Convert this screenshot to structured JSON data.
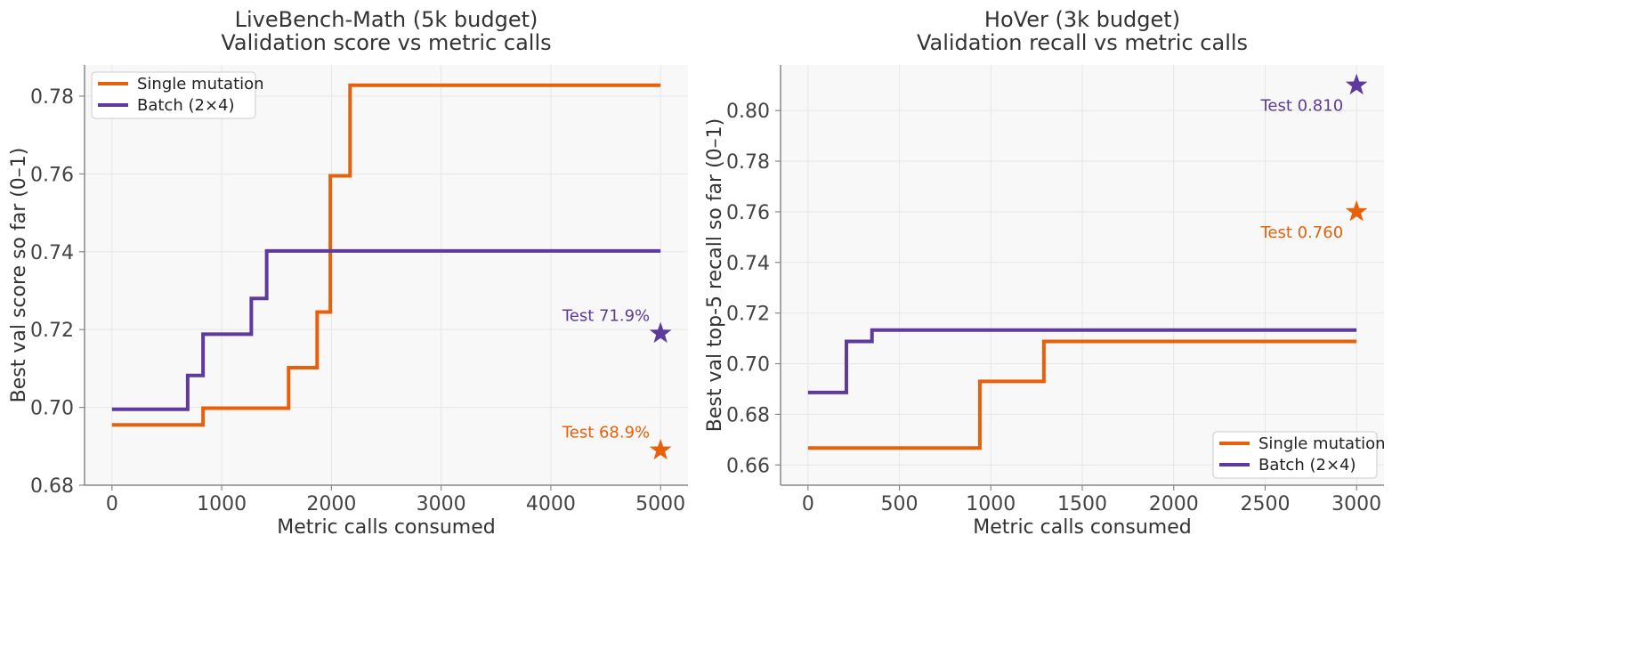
{
  "colors": {
    "single": "#E8600A",
    "batch": "#5E3A9E",
    "panel_bg": "#F8F8F8",
    "grid": "#E6E6E6",
    "spine": "#888888"
  },
  "chart_data": [
    {
      "type": "line",
      "step": true,
      "title": "LiveBench-Math (5k budget)",
      "subtitle": "Validation score vs metric calls",
      "xlabel": "Metric calls consumed",
      "ylabel": "Best val score so far (0–1)",
      "xlim": [
        -250,
        5250
      ],
      "ylim": [
        0.68,
        0.788
      ],
      "xticks": [
        0,
        1000,
        2000,
        3000,
        4000,
        5000
      ],
      "yticks": [
        0.68,
        0.7,
        0.72,
        0.74,
        0.76,
        0.78
      ],
      "grid": true,
      "legend": "top-left",
      "series": [
        {
          "name": "Single mutation",
          "color_key": "single",
          "x": [
            0,
            830,
            1610,
            1870,
            1990,
            2170,
            5000
          ],
          "y": [
            0.6955,
            0.6998,
            0.7102,
            0.7245,
            0.7595,
            0.7828,
            0.7828
          ]
        },
        {
          "name": "Batch (2×4)",
          "color_key": "batch",
          "x": [
            0,
            690,
            830,
            1270,
            1410,
            5000
          ],
          "y": [
            0.6995,
            0.7082,
            0.7188,
            0.728,
            0.7402,
            0.7402
          ]
        }
      ],
      "annotations": [
        {
          "text": "Test 71.9%",
          "x": 5000,
          "y": 0.719,
          "color_key": "batch",
          "marker": "star"
        },
        {
          "text": "Test 68.9%",
          "x": 5000,
          "y": 0.689,
          "color_key": "single",
          "marker": "star"
        }
      ]
    },
    {
      "type": "line",
      "step": true,
      "title": "HoVer (3k budget)",
      "subtitle": "Validation recall vs metric calls",
      "xlabel": "Metric calls consumed",
      "ylabel": "Best val top-5 recall so far (0–1)",
      "xlim": [
        -150,
        3150
      ],
      "ylim": [
        0.652,
        0.818
      ],
      "xticks": [
        0,
        500,
        1000,
        1500,
        2000,
        2500,
        3000
      ],
      "yticks": [
        0.66,
        0.68,
        0.7,
        0.72,
        0.74,
        0.76,
        0.78,
        0.8
      ],
      "grid": true,
      "legend": "bottom-right",
      "series": [
        {
          "name": "Single mutation",
          "color_key": "single",
          "x": [
            0,
            940,
            1290,
            3000
          ],
          "y": [
            0.6667,
            0.693,
            0.7088,
            0.7088
          ]
        },
        {
          "name": "Batch (2×4)",
          "color_key": "batch",
          "x": [
            0,
            210,
            350,
            3000
          ],
          "y": [
            0.6886,
            0.7088,
            0.7133,
            0.7133
          ]
        }
      ],
      "annotations": [
        {
          "text": "Test 0.810",
          "x": 3000,
          "y": 0.81,
          "color_key": "batch",
          "marker": "star"
        },
        {
          "text": "Test 0.760",
          "x": 3000,
          "y": 0.76,
          "color_key": "single",
          "marker": "star"
        }
      ]
    }
  ]
}
